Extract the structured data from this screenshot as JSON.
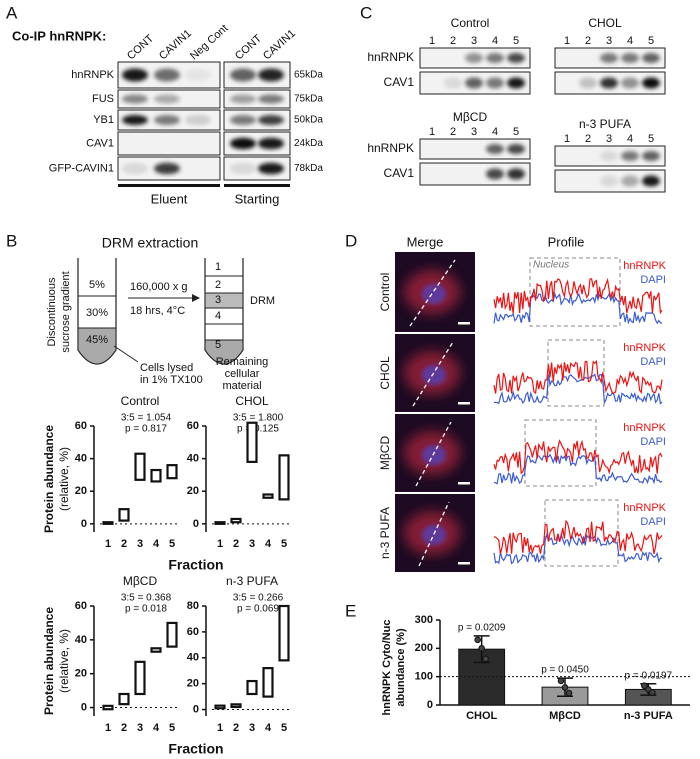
{
  "panel_a": {
    "label": "A",
    "title": "Co-IP hnRNPK:",
    "columns": [
      "CONT",
      "CAVIN1",
      "Neg Cont",
      "CONT",
      "CAVIN1"
    ],
    "rows": [
      "hnRNPK",
      "FUS",
      "YB1",
      "CAV1",
      "GFP-CAVIN1"
    ],
    "mw": [
      "65kDa",
      "75kDa",
      "50kDa",
      "24kDa",
      "78kDa"
    ],
    "groups": [
      "Eluent",
      "Starting"
    ]
  },
  "panel_b": {
    "label": "B",
    "title": "DRM extraction",
    "gradient_label": [
      "Discontinuous",
      "sucrose gradient"
    ],
    "layers": [
      "5%",
      "30%",
      "45%"
    ],
    "lysis": [
      "Cells lysed",
      "in 1% TX100"
    ],
    "spin": [
      "160,000 x g",
      "18 hrs, 4°C"
    ],
    "fractions": [
      "1",
      "2",
      "3",
      "4",
      "5"
    ],
    "drm": "DRM",
    "remaining": [
      "Remaining",
      "cellular",
      "material"
    ]
  },
  "panel_c": {
    "label": "C",
    "rows": [
      "hnRNPK",
      "CAV1"
    ],
    "lanes": [
      "1",
      "2",
      "3",
      "4",
      "5"
    ],
    "blots": [
      "Control",
      "CHOL",
      "MβCD",
      "n-3 PUFA"
    ]
  },
  "panel_d": {
    "label": "D",
    "columns": [
      "Merge",
      "Profile"
    ],
    "rows": [
      "Control",
      "CHOL",
      "MβCD",
      "n-3 PUFA"
    ],
    "legend": [
      "hnRNPK",
      "DAPI"
    ],
    "nucleus": "Nucleus"
  },
  "panel_e": {
    "label": "E"
  },
  "chart_data": [
    {
      "type": "floating_bar",
      "title": "Control",
      "annotations": [
        "3:5 = 1.054",
        "p = 0.817"
      ],
      "categories": [
        "1",
        "2",
        "3",
        "4",
        "5"
      ],
      "values": [
        [
          0,
          1
        ],
        [
          2,
          9
        ],
        [
          27,
          43
        ],
        [
          26,
          33
        ],
        [
          28,
          36
        ]
      ],
      "ylim": [
        -5,
        60
      ],
      "yticks": [
        0,
        20,
        40,
        60
      ],
      "x_label": "Fraction",
      "y_label": [
        "Protein abundance",
        "(relative, %)"
      ]
    },
    {
      "type": "floating_bar",
      "title": "CHOL",
      "annotations": [
        "3:5 = 1.800",
        "p = 0.125"
      ],
      "categories": [
        "1",
        "2",
        "3",
        "4",
        "5"
      ],
      "values": [
        [
          0,
          1
        ],
        [
          1,
          3
        ],
        [
          38,
          62
        ],
        [
          16,
          18
        ],
        [
          15,
          42
        ]
      ],
      "ylim": [
        -5,
        60
      ],
      "yticks": [
        0,
        20,
        40,
        60
      ]
    },
    {
      "type": "floating_bar",
      "title": "MβCD",
      "annotations": [
        "3:5 = 0.368",
        "p = 0.018"
      ],
      "categories": [
        "1",
        "2",
        "3",
        "4",
        "5"
      ],
      "values": [
        [
          -1,
          1
        ],
        [
          2,
          8
        ],
        [
          8,
          27
        ],
        [
          33,
          35
        ],
        [
          36,
          50
        ]
      ],
      "ylim": [
        -5,
        60
      ],
      "yticks": [
        0,
        20,
        40,
        60
      ],
      "x_label": "Fraction",
      "y_label": [
        "Protein abundance",
        "(relative, %)"
      ]
    },
    {
      "type": "floating_bar",
      "title": "n-3 PUFA",
      "annotations": [
        "3:5 = 0.266",
        "p = 0.069"
      ],
      "categories": [
        "1",
        "2",
        "3",
        "4",
        "5"
      ],
      "values": [
        [
          1,
          3
        ],
        [
          2,
          4
        ],
        [
          12,
          22
        ],
        [
          10,
          32
        ],
        [
          38,
          80
        ]
      ],
      "ylim": [
        -5,
        80
      ],
      "yticks": [
        0,
        20,
        40,
        60,
        80
      ]
    },
    {
      "type": "bar",
      "categories": [
        "CHOL",
        "MβCD",
        "n-3 PUFA"
      ],
      "values": [
        197,
        63,
        55
      ],
      "errors": [
        47,
        32,
        20
      ],
      "points": [
        [
          230,
          200,
          163
        ],
        [
          85,
          62,
          42
        ],
        [
          68,
          55,
          44
        ]
      ],
      "annotations": [
        "p = 0.0209",
        "p = 0.0450",
        "p = 0.0197"
      ],
      "colors": [
        "#2b2b2b",
        "#9a9a9a",
        "#555555"
      ],
      "ylim": [
        0,
        300
      ],
      "yticks": [
        0,
        100,
        200,
        300
      ],
      "reference_line": 100,
      "y_label": [
        "hnRNPK Cyto/Nuc",
        "abundance (%)"
      ]
    }
  ]
}
